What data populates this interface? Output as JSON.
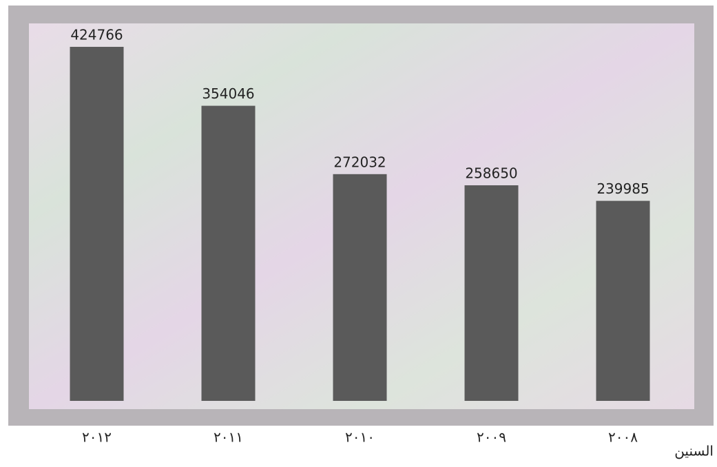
{
  "chart_data": {
    "type": "bar",
    "categories": [
      "٢٠١٢",
      "٢٠١١",
      "٢٠١٠",
      "٢٠٠٩",
      "٢٠٠٨"
    ],
    "values": [
      424766,
      354046,
      272032,
      258650,
      239985
    ],
    "color": "#5a5a5a",
    "x_label": "السنين"
  }
}
